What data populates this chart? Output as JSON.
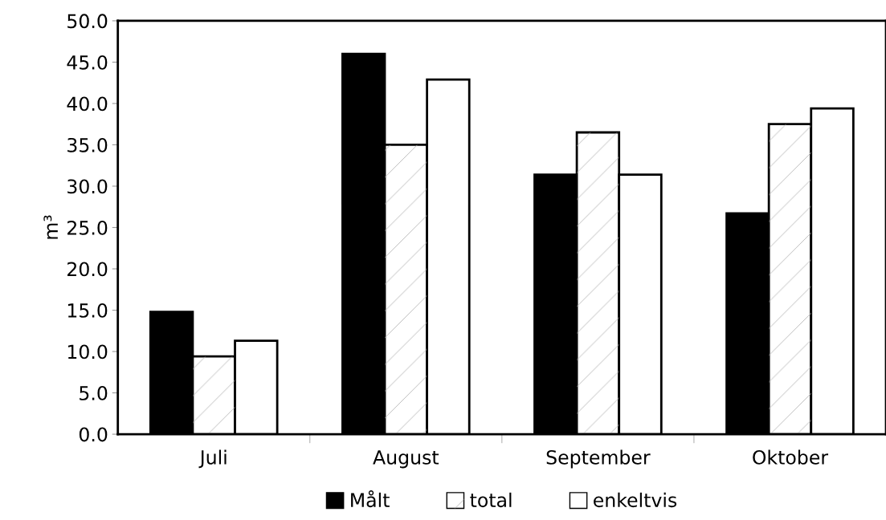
{
  "chart_data": {
    "type": "bar",
    "ylabel": "m³",
    "categories": [
      "Juli",
      "August",
      "September",
      "Oktober"
    ],
    "series": [
      {
        "name": "Målt",
        "color": "#000000",
        "values": [
          14.8,
          46.0,
          31.4,
          26.7
        ]
      },
      {
        "name": "total",
        "color": "#ffffff",
        "values": [
          9.4,
          35.0,
          36.5,
          37.5
        ]
      },
      {
        "name": "enkeltvis",
        "color": "#ffffff",
        "values": [
          11.3,
          42.9,
          31.4,
          39.4
        ]
      }
    ],
    "ylim": [
      0,
      50
    ],
    "yticks": [
      {
        "value": 0,
        "label": "0.0"
      },
      {
        "value": 5,
        "label": "5.0"
      },
      {
        "value": 10,
        "label": "10.0"
      },
      {
        "value": 15,
        "label": "15.0"
      },
      {
        "value": 20,
        "label": "20.0"
      },
      {
        "value": 25,
        "label": "25.0"
      },
      {
        "value": 30,
        "label": "30.0"
      },
      {
        "value": 35,
        "label": "35.0"
      },
      {
        "value": 40,
        "label": "40.0"
      },
      {
        "value": 45,
        "label": "45.0"
      },
      {
        "value": 50,
        "label": "50.0"
      }
    ],
    "grid": false,
    "legend": "bottom"
  }
}
